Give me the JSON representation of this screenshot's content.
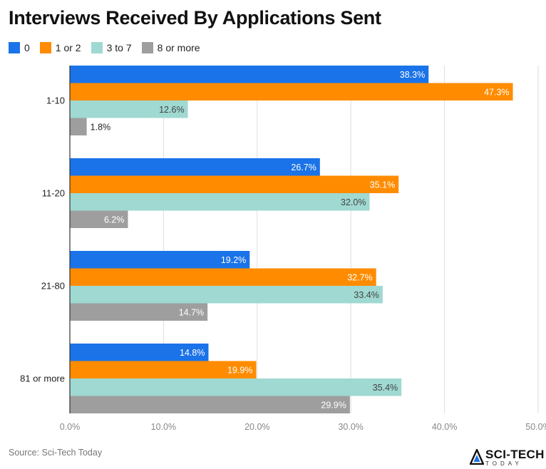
{
  "title": "Interviews Received By Applications Sent",
  "source": "Source: Sci-Tech Today",
  "logo": {
    "main": "SCI-TECH",
    "sub": "TODAY"
  },
  "chart_data": {
    "type": "bar",
    "orientation": "horizontal",
    "title": "Interviews Received By Applications Sent",
    "categories": [
      "1-10",
      "11-20",
      "21-80",
      "81 or more"
    ],
    "series": [
      {
        "name": "0",
        "color": "#1a73e8",
        "values": [
          38.3,
          26.7,
          19.2,
          14.8
        ],
        "labels": [
          "38.3%",
          "26.7%",
          "19.2%",
          "14.8%"
        ]
      },
      {
        "name": "1 or 2",
        "color": "#ff8c00",
        "values": [
          47.3,
          35.1,
          32.7,
          19.9
        ],
        "labels": [
          "47.3%",
          "35.1%",
          "32.7%",
          "19.9%"
        ]
      },
      {
        "name": "3 to 7",
        "color": "#9fd9d1",
        "values": [
          12.6,
          32.0,
          33.4,
          35.4
        ],
        "labels": [
          "12.6%",
          "32.0%",
          "33.4%",
          "35.4%"
        ]
      },
      {
        "name": "8 or more",
        "color": "#9e9e9e",
        "values": [
          1.8,
          6.2,
          14.7,
          29.9
        ],
        "labels": [
          "1.8%",
          "6.2%",
          "14.7%",
          "29.9%"
        ]
      }
    ],
    "xlim": [
      0,
      50
    ],
    "x_ticks": [
      "0.0%",
      "10.0%",
      "20.0%",
      "30.0%",
      "40.0%",
      "50.0%"
    ],
    "grid": true,
    "legend_position": "top-left"
  }
}
